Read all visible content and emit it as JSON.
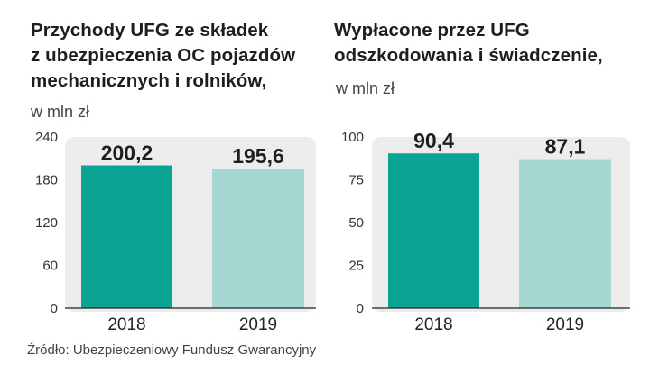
{
  "source": "Źródło: Ubezpieczeniowy Fundusz Gwarancyjny",
  "colors": {
    "bar_2018": "#0ba393",
    "bar_2019": "#a6d8d3",
    "plot_bg": "#ececec"
  },
  "chart_data": [
    {
      "type": "bar",
      "title_lines": [
        "Przychody UFG ze składek",
        "z ubezpieczenia OC pojazdów",
        "mechanicznych i rolników,"
      ],
      "unit": "w mln zł",
      "categories": [
        "2018",
        "2019"
      ],
      "values": [
        200.2,
        195.6
      ],
      "value_labels": [
        "200,2",
        "195,6"
      ],
      "yticks": [
        0,
        60,
        120,
        180,
        240
      ],
      "ylim": [
        0,
        240
      ],
      "grid": false
    },
    {
      "type": "bar",
      "title_lines": [
        "Wypłacone przez UFG",
        "odszkodowania i świadczenie,"
      ],
      "unit": "w mln zł",
      "categories": [
        "2018",
        "2019"
      ],
      "values": [
        90.4,
        87.1
      ],
      "value_labels": [
        "90,4",
        "87,1"
      ],
      "yticks": [
        0,
        25,
        50,
        75,
        100
      ],
      "ylim": [
        0,
        100
      ],
      "grid": false
    }
  ]
}
